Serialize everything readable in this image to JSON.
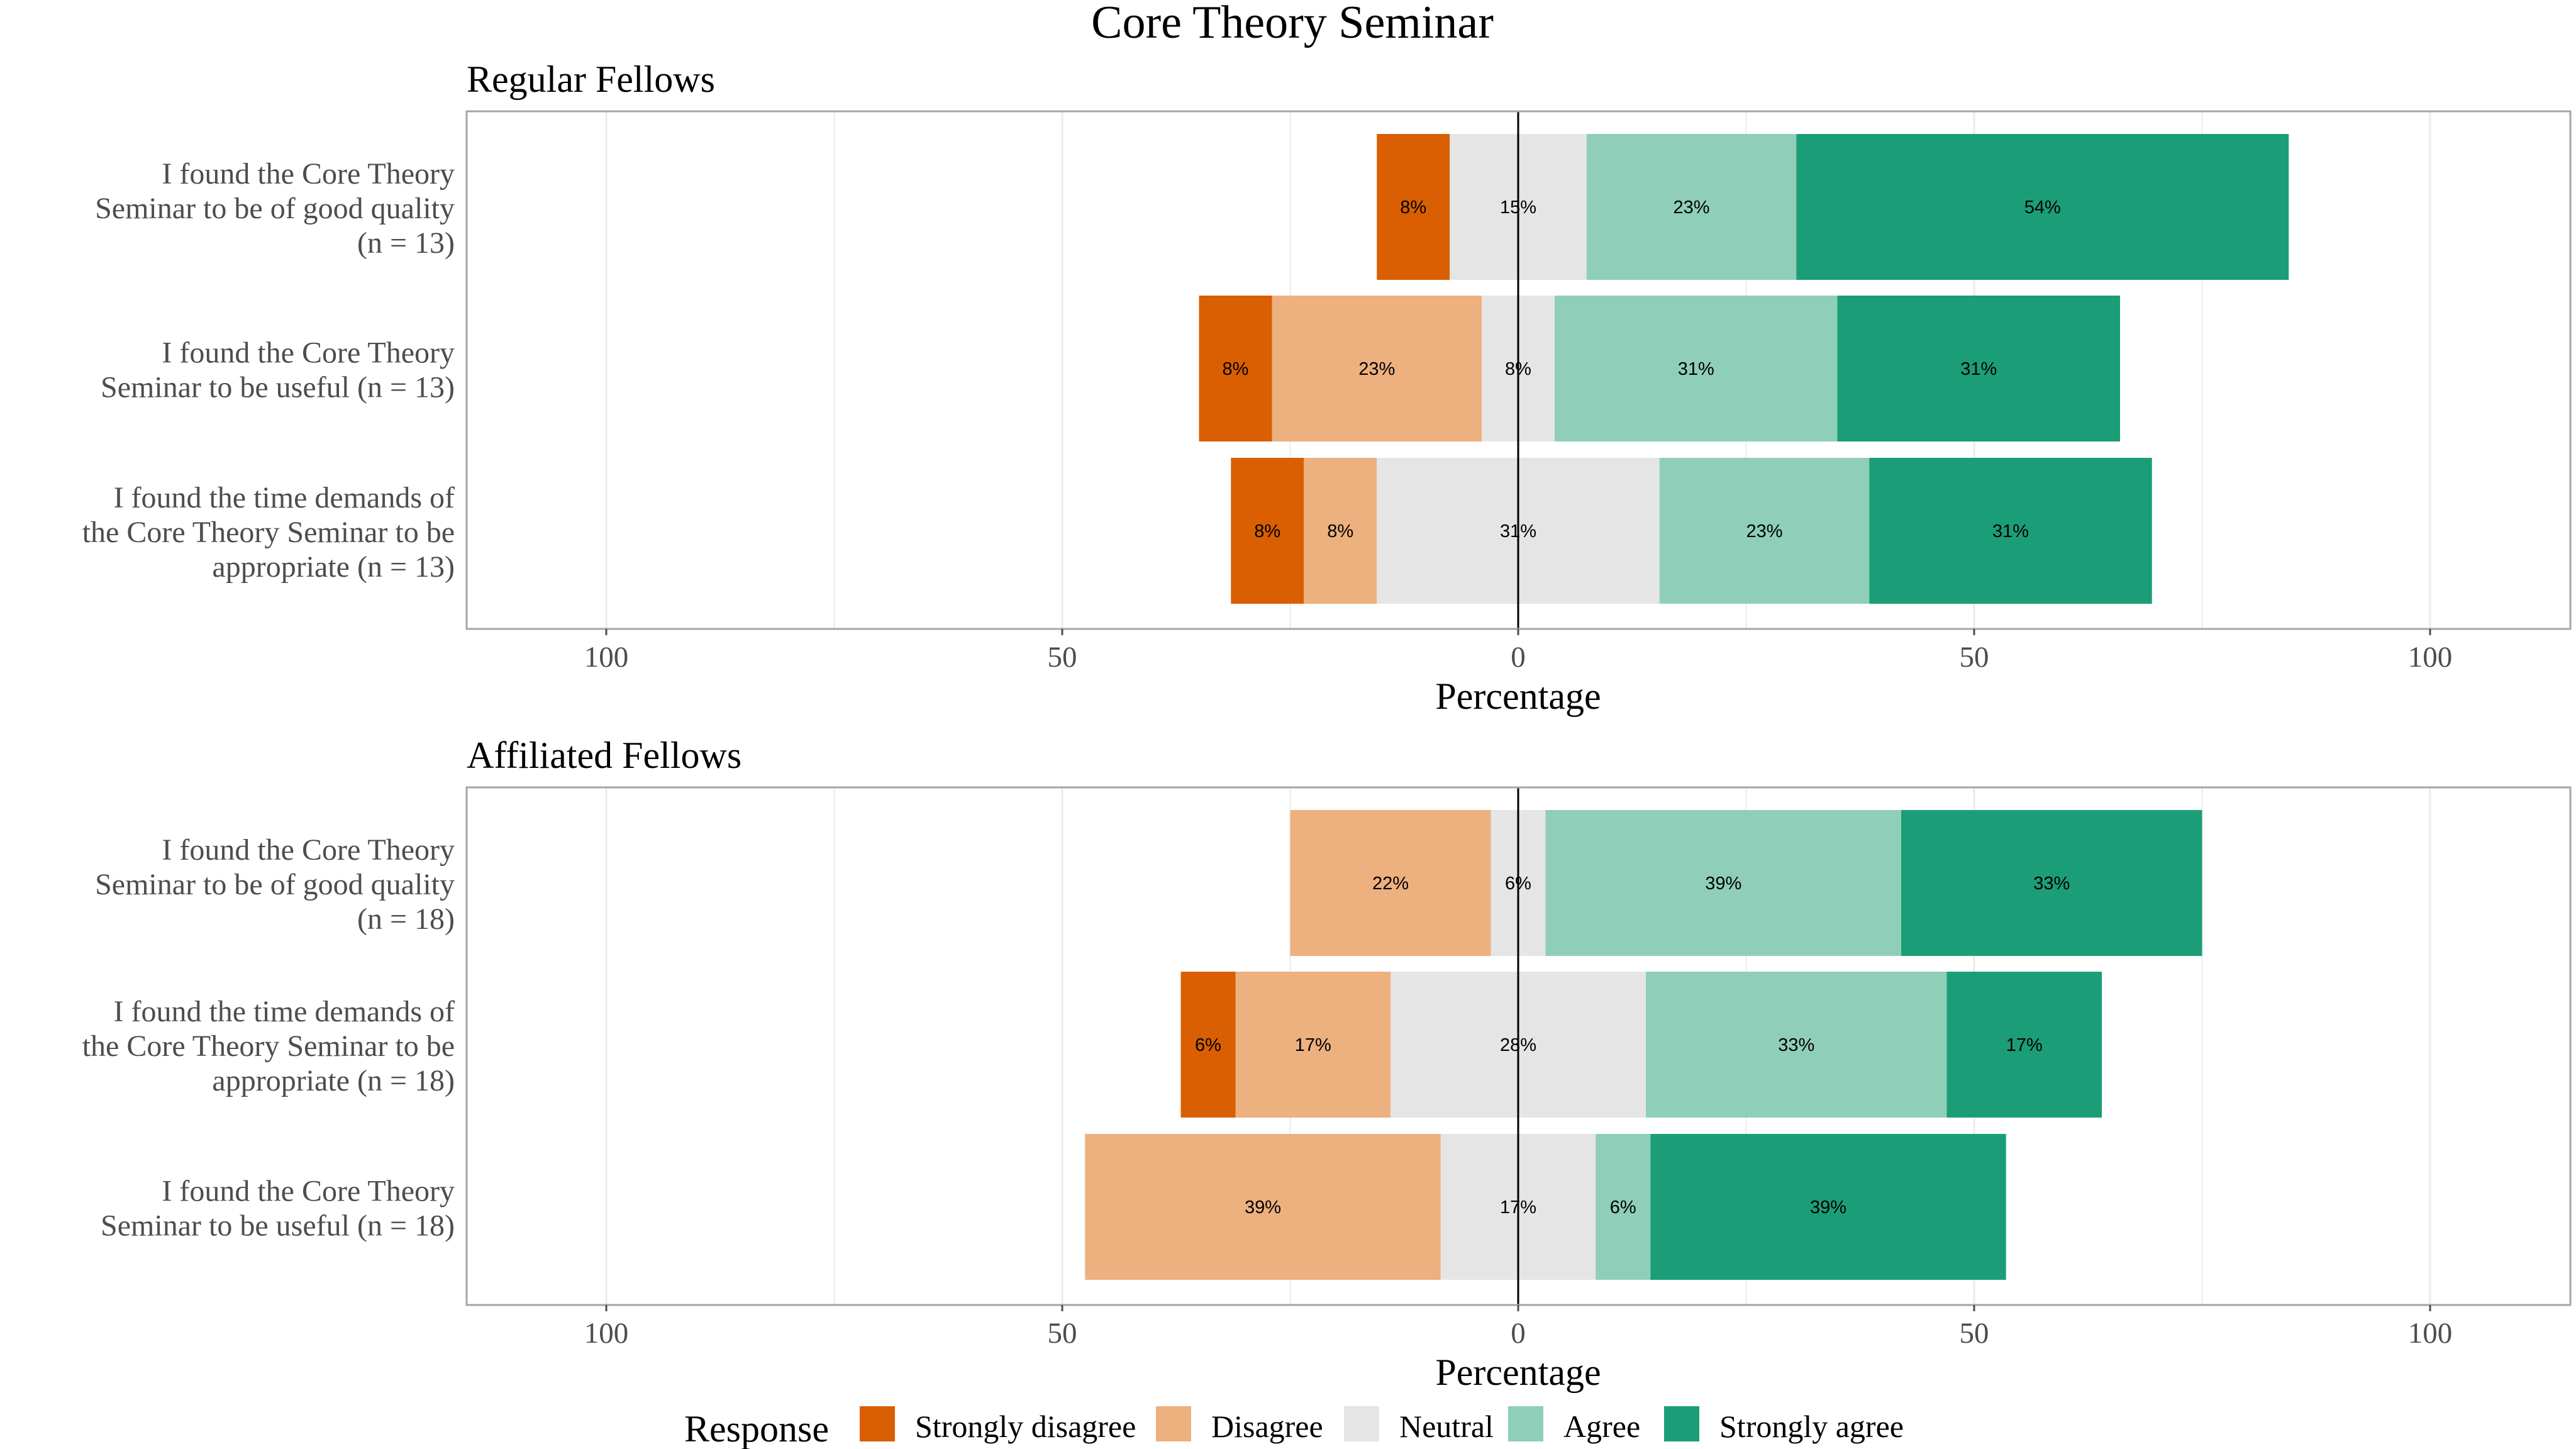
{
  "chart_data": {
    "type": "bar",
    "orientation": "horizontal",
    "stacked": "diverging",
    "title": "Core Theory Seminar",
    "xlabel": "Percentage",
    "xlim": [
      -100,
      100
    ],
    "x_ticks": [
      -100,
      -50,
      0,
      50,
      100
    ],
    "x_tick_labels": [
      "100",
      "50",
      "0",
      "50",
      "100"
    ],
    "grid": true,
    "legend": {
      "title": "Response",
      "position": "bottom",
      "entries": [
        "Strongly disagree",
        "Disagree",
        "Neutral",
        "Agree",
        "Strongly agree"
      ]
    },
    "colors": {
      "Strongly disagree": "#D95F02",
      "Disagree": "#EDB07F",
      "Neutral": "#E5E5E5",
      "Agree": "#8FCFBA",
      "Strongly agree": "#1B9E77"
    },
    "panels": [
      {
        "title": "Regular Fellows",
        "items": [
          {
            "label_lines": [
              "I found the Core Theory",
              "Seminar to be of good quality",
              "(n = 13)"
            ],
            "values": [
              8,
              0,
              15,
              23,
              54
            ],
            "labels": [
              "8%",
              "",
              "15%",
              "23%",
              "54%"
            ]
          },
          {
            "label_lines": [
              "I found the Core Theory",
              "Seminar to be useful (n = 13)"
            ],
            "values": [
              8,
              23,
              8,
              31,
              31
            ],
            "labels": [
              "8%",
              "23%",
              "8%",
              "31%",
              "31%"
            ]
          },
          {
            "label_lines": [
              "I found the time demands of",
              "the Core Theory Seminar to be",
              "appropriate (n = 13)"
            ],
            "values": [
              8,
              8,
              31,
              23,
              31
            ],
            "labels": [
              "8%",
              "8%",
              "31%",
              "23%",
              "31%"
            ]
          }
        ]
      },
      {
        "title": "Affiliated Fellows",
        "items": [
          {
            "label_lines": [
              "I found the Core Theory",
              "Seminar to be of good quality",
              "(n = 18)"
            ],
            "values": [
              0,
              22,
              6,
              39,
              33
            ],
            "labels": [
              "",
              "22%",
              "6%",
              "39%",
              "33%"
            ]
          },
          {
            "label_lines": [
              "I found the time demands of",
              "the Core Theory Seminar to be",
              "appropriate (n = 18)"
            ],
            "values": [
              6,
              17,
              28,
              33,
              17
            ],
            "labels": [
              "6%",
              "17%",
              "28%",
              "33%",
              "17%"
            ]
          },
          {
            "label_lines": [
              "I found the Core Theory",
              "Seminar to be useful (n = 18)"
            ],
            "values": [
              0,
              39,
              17,
              6,
              39
            ],
            "labels": [
              "",
              "39%",
              "17%",
              "6%",
              "39%"
            ]
          }
        ]
      }
    ]
  }
}
